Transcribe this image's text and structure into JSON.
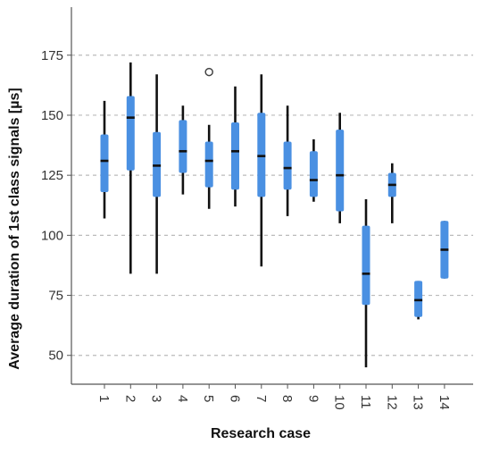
{
  "chart_data": {
    "type": "box",
    "title": "",
    "xlabel": "Research case",
    "ylabel": "Average duration of 1st class signals [µs]",
    "ylim": [
      38,
      195
    ],
    "yticks": [
      50,
      75,
      100,
      125,
      150,
      175
    ],
    "grid": {
      "horizontal": true,
      "style": "dashed"
    },
    "legend": "none",
    "categories": [
      "1",
      "2",
      "3",
      "4",
      "5",
      "6",
      "7",
      "8",
      "9",
      "10",
      "11",
      "12",
      "13",
      "14"
    ],
    "boxes": [
      {
        "min": 107,
        "q1": 118,
        "median": 131,
        "q3": 142,
        "max": 156
      },
      {
        "min": 84,
        "q1": 127,
        "median": 149,
        "q3": 158,
        "max": 172
      },
      {
        "min": 84,
        "q1": 116,
        "median": 129,
        "q3": 143,
        "max": 167
      },
      {
        "min": 117,
        "q1": 126,
        "median": 135,
        "q3": 148,
        "max": 154
      },
      {
        "min": 111,
        "q1": 120,
        "median": 131,
        "q3": 139,
        "max": 146,
        "outliers": [
          168
        ]
      },
      {
        "min": 112,
        "q1": 119,
        "median": 135,
        "q3": 147,
        "max": 162
      },
      {
        "min": 87,
        "q1": 116,
        "median": 133,
        "q3": 151,
        "max": 167
      },
      {
        "min": 108,
        "q1": 119,
        "median": 128,
        "q3": 139,
        "max": 154
      },
      {
        "min": 114,
        "q1": 116,
        "median": 123,
        "q3": 135,
        "max": 140
      },
      {
        "min": 105,
        "q1": 110,
        "median": 125,
        "q3": 144,
        "max": 151
      },
      {
        "min": 45,
        "q1": 71,
        "median": 84,
        "q3": 104,
        "max": 115
      },
      {
        "min": 105,
        "q1": 116,
        "median": 121,
        "q3": 126,
        "max": 130
      },
      {
        "min": 65,
        "q1": 66,
        "median": 73,
        "q3": 81,
        "max": 81
      },
      {
        "min": 82,
        "q1": 82,
        "median": 94,
        "q3": 106,
        "max": 106
      }
    ],
    "colors": {
      "box": "#4a90e2",
      "whisker": "#111111",
      "median": "#111111",
      "grid": "#bbbbbb",
      "axis": "#555555"
    }
  }
}
